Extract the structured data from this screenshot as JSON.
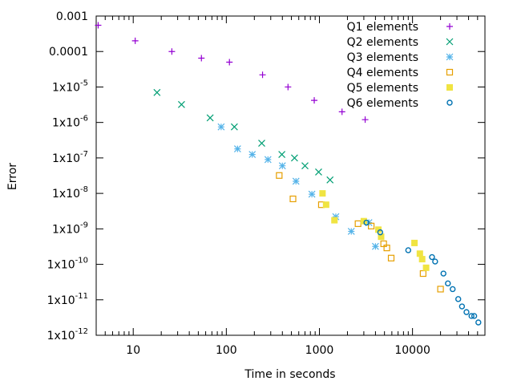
{
  "chart_data": {
    "type": "scatter",
    "title": "",
    "xlabel": "Time in seconds",
    "ylabel": "Error",
    "x_scale": "log",
    "y_scale": "log",
    "xlim": [
      4,
      60000
    ],
    "ylim": [
      1e-12,
      0.001
    ],
    "x_ticks": [
      {
        "value": 10,
        "label": "10"
      },
      {
        "value": 100,
        "label": "100"
      },
      {
        "value": 1000,
        "label": "1000"
      },
      {
        "value": 10000,
        "label": "10000"
      }
    ],
    "y_ticks": [
      {
        "value": 0.001,
        "label": "0.001",
        "mantissa": "",
        "exp": ""
      },
      {
        "value": 0.0001,
        "label": "0.0001",
        "mantissa": "",
        "exp": ""
      },
      {
        "value": 1e-05,
        "label": "",
        "mantissa": "1x10",
        "exp": "-5"
      },
      {
        "value": 1e-06,
        "label": "",
        "mantissa": "1x10",
        "exp": "-6"
      },
      {
        "value": 1e-07,
        "label": "",
        "mantissa": "1x10",
        "exp": "-7"
      },
      {
        "value": 1e-08,
        "label": "",
        "mantissa": "1x10",
        "exp": "-8"
      },
      {
        "value": 1e-09,
        "label": "",
        "mantissa": "1x10",
        "exp": "-9"
      },
      {
        "value": 1e-10,
        "label": "",
        "mantissa": "1x10",
        "exp": "-10"
      },
      {
        "value": 1e-11,
        "label": "",
        "mantissa": "1x10",
        "exp": "-11"
      },
      {
        "value": 1e-12,
        "label": "",
        "mantissa": "1x10",
        "exp": "-12"
      }
    ],
    "grid": false,
    "legend_position": "top-right",
    "series": [
      {
        "name": "Q1 elements",
        "marker": "plus",
        "color": "#9400d3",
        "points": [
          [
            4.2,
            0.00055
          ],
          [
            10.5,
            0.0002
          ],
          [
            26,
            0.0001
          ],
          [
            54,
            6.5e-05
          ],
          [
            108,
            5e-05
          ],
          [
            245,
            2.2e-05
          ],
          [
            460,
            1e-05
          ],
          [
            880,
            4.2e-06
          ],
          [
            1750,
            2e-06
          ],
          [
            3100,
            1.2e-06
          ]
        ]
      },
      {
        "name": "Q2 elements",
        "marker": "x",
        "color": "#009e73",
        "points": [
          [
            18,
            7e-06
          ],
          [
            33,
            3.2e-06
          ],
          [
            67,
            1.35e-06
          ],
          [
            122,
            7.5e-07
          ],
          [
            240,
            2.6e-07
          ],
          [
            395,
            1.25e-07
          ],
          [
            540,
            1e-07
          ],
          [
            700,
            6e-08
          ],
          [
            980,
            4e-08
          ],
          [
            1300,
            2.4e-08
          ]
        ]
      },
      {
        "name": "Q3 elements",
        "marker": "star",
        "color": "#56b4e9",
        "points": [
          [
            88,
            7.5e-07
          ],
          [
            132,
            1.8e-07
          ],
          [
            190,
            1.25e-07
          ],
          [
            280,
            9e-08
          ],
          [
            400,
            6e-08
          ],
          [
            560,
            2.2e-08
          ],
          [
            830,
            9.5e-09
          ],
          [
            1500,
            2.2e-09
          ],
          [
            2200,
            8.5e-10
          ],
          [
            3400,
            1.5e-09
          ],
          [
            4000,
            3.2e-10
          ]
        ]
      },
      {
        "name": "Q4 elements",
        "marker": "square-open",
        "color": "#e69f00",
        "points": [
          [
            370,
            3.2e-08
          ],
          [
            520,
            7e-09
          ],
          [
            1050,
            4.8e-09
          ],
          [
            2600,
            1.4e-09
          ],
          [
            3600,
            1.2e-09
          ],
          [
            4900,
            3.8e-10
          ],
          [
            5300,
            2.9e-10
          ],
          [
            5900,
            1.5e-10
          ],
          [
            13000,
            5.5e-11
          ],
          [
            20000,
            2e-11
          ]
        ]
      },
      {
        "name": "Q5 elements",
        "marker": "square-filled",
        "color": "#f0e442",
        "points": [
          [
            1080,
            1e-08
          ],
          [
            1180,
            4.8e-09
          ],
          [
            1450,
            1.75e-09
          ],
          [
            3000,
            1.65e-09
          ],
          [
            4300,
            9.5e-10
          ],
          [
            4600,
            6e-10
          ],
          [
            10500,
            4e-10
          ],
          [
            12000,
            2e-10
          ],
          [
            12700,
            1.4e-10
          ],
          [
            14000,
            8e-11
          ]
        ]
      },
      {
        "name": "Q6 elements",
        "marker": "circle-open",
        "color": "#0072b2",
        "points": [
          [
            3200,
            1.5e-09
          ],
          [
            4500,
            8e-10
          ],
          [
            9000,
            2.5e-10
          ],
          [
            16200,
            1.6e-10
          ],
          [
            17500,
            1.2e-10
          ],
          [
            21500,
            5.5e-11
          ],
          [
            24000,
            2.9e-11
          ],
          [
            27000,
            2e-11
          ],
          [
            31000,
            1.05e-11
          ],
          [
            34000,
            6.5e-12
          ],
          [
            38000,
            4.5e-12
          ],
          [
            43000,
            3.5e-12
          ],
          [
            46000,
            3.5e-12
          ],
          [
            51000,
            2.3e-12
          ]
        ]
      }
    ]
  }
}
